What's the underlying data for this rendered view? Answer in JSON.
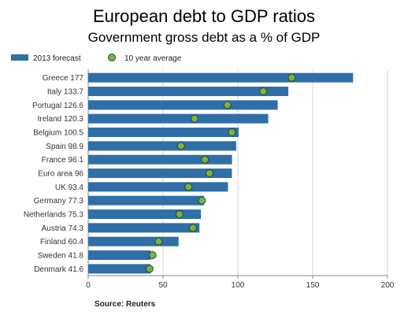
{
  "chart_data": {
    "type": "bar",
    "orientation": "horizontal",
    "title": "European debt to GDP ratios",
    "subtitle": "Government gross debt as a % of GDP",
    "categories": [
      "Greece 177",
      "Italy 133.7",
      "Portugal 126.6",
      "Ireland 120.3",
      "Belgium 100.5",
      "Spain 98.9",
      "France 96.1",
      "Euro area 96",
      "UK 93.4",
      "Germany 77.3",
      "Netherlands 75.3",
      "Austria 74.3",
      "Finland 60.4",
      "Sweden 41.8",
      "Denmark 41.6"
    ],
    "series": [
      {
        "name": "2013 forecast",
        "values": [
          177,
          133.7,
          126.6,
          120.3,
          100.5,
          98.9,
          96.1,
          96,
          93.4,
          77.3,
          75.3,
          74.3,
          60.4,
          41.8,
          41.6
        ],
        "color": "#2f6fa8",
        "marker": "bar"
      },
      {
        "name": "10 year average",
        "values": [
          136,
          117,
          93,
          71,
          96,
          62,
          78,
          81,
          67,
          76,
          61,
          70,
          47,
          43,
          41
        ],
        "color": "#7ab04a",
        "marker": "circle"
      }
    ],
    "xlim": [
      0,
      200
    ],
    "xticks": [
      "0",
      "50",
      "100",
      "150",
      "200"
    ],
    "grid": "vertical",
    "legend": "top-left",
    "source": "Source:  Reuters"
  }
}
